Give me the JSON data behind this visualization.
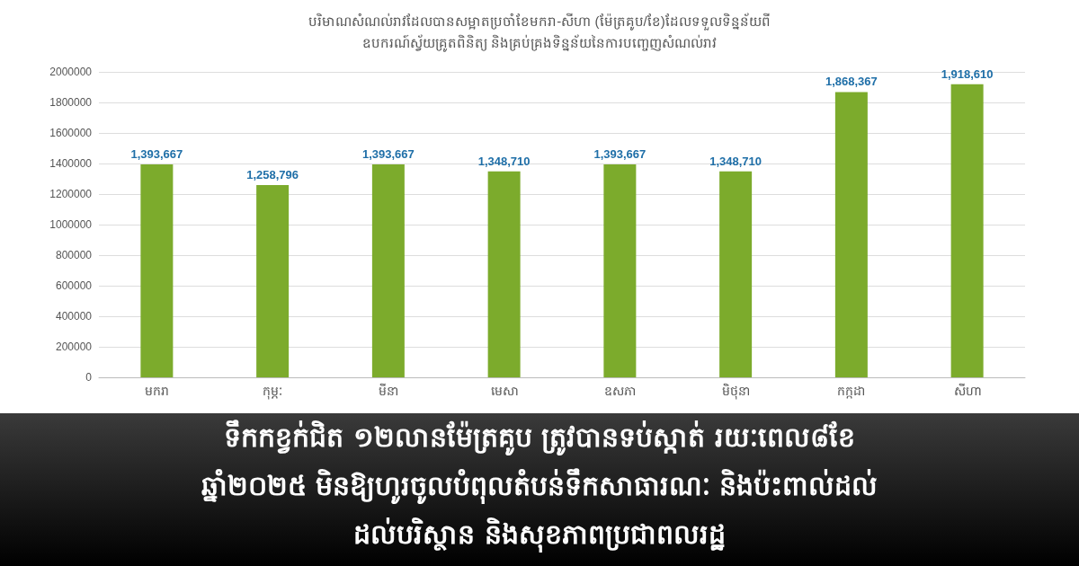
{
  "chart_data": {
    "type": "bar",
    "title": "បរិមាណសំណល់រាវដែលបានសម្អាតប្រចាំខែមករា-សីហា (ម៉ែត្រគូប/ខែ)ដែលទទួលទិន្នន័យពី\nឧបករណ៍ស្វ័យគ្រូតពិនិត្យ និងគ្រប់គ្រងទិន្នន័យនៃការបញ្ចេញសំណល់រាវ",
    "categories": [
      "មករា",
      "កុម្ភៈ",
      "មីនា",
      "មេសា",
      "ឧសភា",
      "មិថុនា",
      "កក្កដា",
      "សីហា"
    ],
    "values": [
      1393667,
      1258796,
      1393667,
      1348710,
      1393667,
      1348710,
      1868367,
      1918610
    ],
    "value_labels": [
      "1,393,667",
      "1,258,796",
      "1,393,667",
      "1,348,710",
      "1,393,667",
      "1,348,710",
      "1,868,367",
      "1,918,610"
    ],
    "color": "#7cab2c",
    "ylim": [
      0,
      2000000
    ],
    "yticks": [
      0,
      200000,
      400000,
      600000,
      800000,
      1000000,
      1200000,
      1400000,
      1600000,
      1800000,
      2000000
    ],
    "grid": true,
    "annotations": [
      "ទឹកកខ្វក់ជិត ១២លានម៉ែត្រគូប ត្រូវបានទប់ស្កាត់ រយៈពេល៨ខែ",
      "ឆ្នាំ២០២៥ មិនឱ្យហូរចូលបំពុលតំបន់ទឹកសាធារណៈ និងប៉ះពាល់ដល់",
      "ដល់បរិស្ថាន និងសុខភាពប្រជាពលរដ្ឋ"
    ]
  }
}
